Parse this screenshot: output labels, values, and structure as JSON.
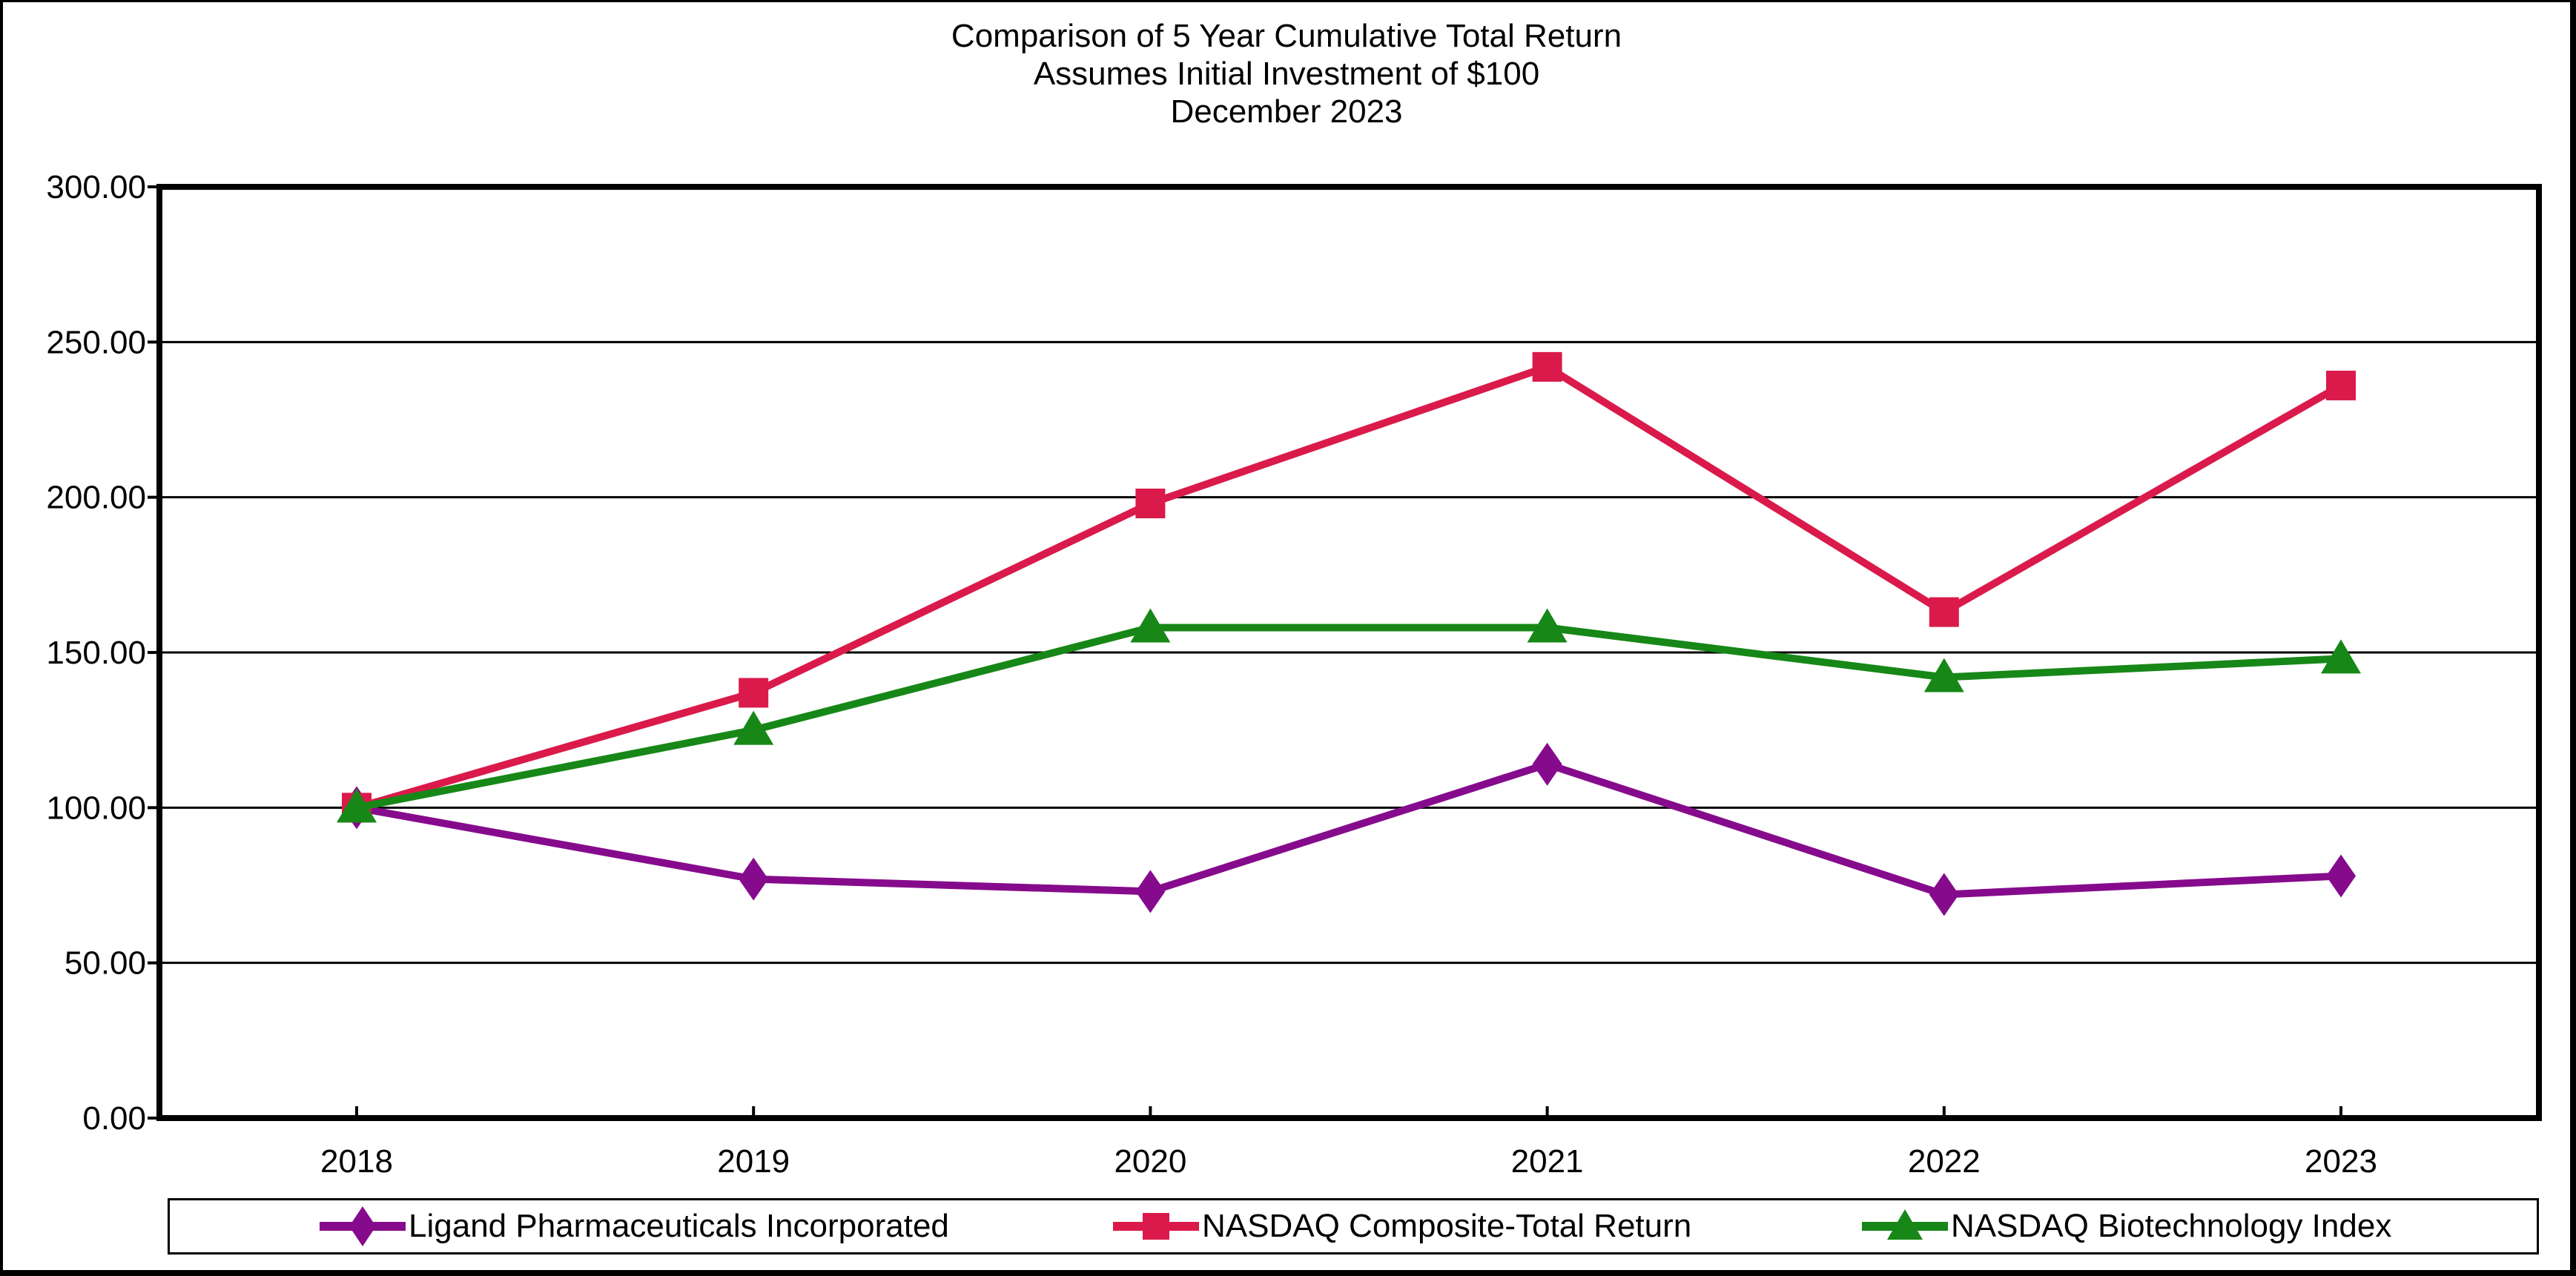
{
  "chart_data": {
    "type": "line",
    "title_lines": [
      "Comparison of 5 Year Cumulative Total Return",
      "Assumes Initial Investment of $100",
      "December 2023"
    ],
    "categories": [
      "2018",
      "2019",
      "2020",
      "2021",
      "2022",
      "2023"
    ],
    "series": [
      {
        "name": "Ligand Pharmaceuticals Incorporated",
        "color": "#860B8C",
        "marker": "diamond",
        "values": [
          100,
          77,
          73,
          114,
          72,
          78
        ]
      },
      {
        "name": "NASDAQ Composite-Total Return",
        "color": "#DA1A4B",
        "marker": "square",
        "values": [
          100,
          137,
          198,
          242,
          163,
          236
        ]
      },
      {
        "name": "NASDAQ Biotechnology Index",
        "color": "#178717",
        "marker": "triangle",
        "values": [
          100,
          125,
          158,
          158,
          142,
          148
        ]
      }
    ],
    "y_axis": {
      "min": 0,
      "max": 300,
      "step": 50,
      "tick_labels": [
        "0.00",
        "50.00",
        "100.00",
        "150.00",
        "200.00",
        "250.00",
        "300.00"
      ]
    },
    "x_axis": {
      "tick_labels": [
        "2018",
        "2019",
        "2020",
        "2021",
        "2022",
        "2023"
      ]
    },
    "grid": true,
    "legend_position": "bottom",
    "plot_border_color": "#000000",
    "background_color": "#ffffff"
  }
}
